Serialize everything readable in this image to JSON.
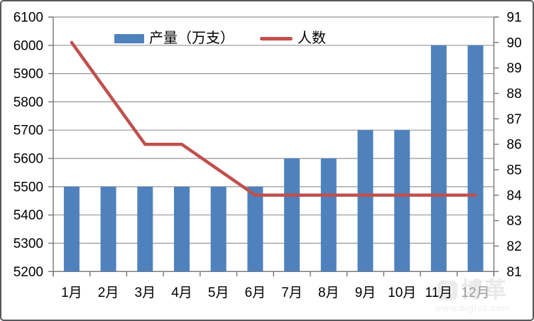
{
  "frame": {
    "background": "#ffffff",
    "border_color": "#58595b"
  },
  "legend": {
    "position": "top-center",
    "items": [
      {
        "label": "产量（万支）",
        "swatch": "bar",
        "color": "#4f81bd"
      },
      {
        "label": "人数",
        "swatch": "line",
        "color": "#c0504d"
      }
    ]
  },
  "chart_data": {
    "type": "bar+line combo",
    "categories": [
      "1月",
      "2月",
      "3月",
      "4月",
      "5月",
      "6月",
      "7月",
      "8月",
      "9月",
      "10月",
      "11月",
      "12月"
    ],
    "series": [
      {
        "name": "产量（万支）",
        "type": "bar",
        "axis": "left",
        "color": "#4f81bd",
        "values": [
          5500,
          5500,
          5500,
          5500,
          5500,
          5500,
          5600,
          5600,
          5700,
          5700,
          6000,
          6000
        ]
      },
      {
        "name": "人数",
        "type": "line",
        "axis": "right",
        "color": "#c0504d",
        "values": [
          90,
          88,
          86,
          86,
          85,
          84,
          84,
          84,
          84,
          84,
          84,
          84
        ]
      }
    ],
    "left_axis": {
      "min": 5200,
      "max": 6100,
      "step": 100
    },
    "right_axis": {
      "min": 81,
      "max": 91,
      "step": 1
    },
    "grid": true,
    "gridlines_from": "left_axis",
    "legend_position": "top-center",
    "muted_category_index": 11
  },
  "colors": {
    "bar": "#4f81bd",
    "line": "#c0504d",
    "grid": "#969696",
    "axis": "#767676",
    "label": "#000000",
    "muted_label": "#9a9a9a"
  },
  "watermark": {
    "logo_text": "B",
    "brand": "博革",
    "url": "www.biglss.com"
  }
}
